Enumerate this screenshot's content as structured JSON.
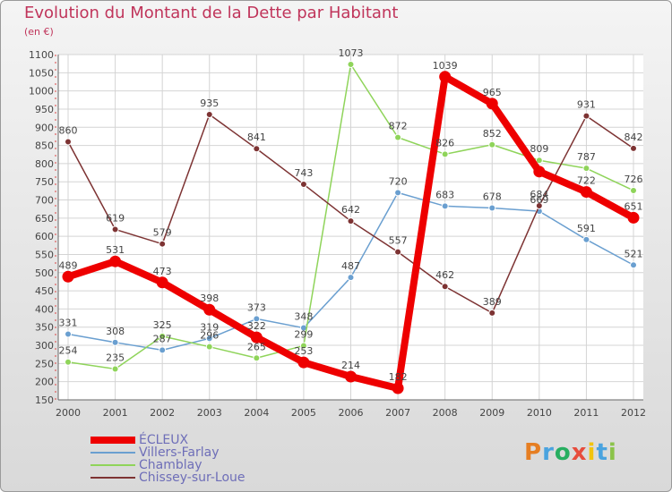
{
  "title": "Evolution du Montant de la Dette par Habitant",
  "unit": "(en €)",
  "logo": {
    "text": "Proxiti",
    "letter_colors": [
      "#e67e22",
      "#4aa3df",
      "#27ae60",
      "#e74c3c",
      "#f1c40f",
      "#4aa3df",
      "#8bc34a"
    ]
  },
  "chart_data": {
    "type": "line",
    "x": [
      "2000",
      "2001",
      "2002",
      "2003",
      "2004",
      "2005",
      "2006",
      "2007",
      "2008",
      "2009",
      "2010",
      "2011",
      "2012"
    ],
    "ylim": [
      150,
      1100
    ],
    "yticks": [
      150,
      200,
      250,
      300,
      350,
      400,
      450,
      500,
      550,
      600,
      650,
      700,
      750,
      800,
      850,
      900,
      950,
      1000,
      1050,
      1100
    ],
    "grid": true,
    "legend_position": "bottom-left",
    "series": [
      {
        "name": "ÉCLEUX",
        "color": "#ee0000",
        "width": 8,
        "values": [
          489,
          531,
          473,
          398,
          322,
          253,
          214,
          182,
          1039,
          965,
          778,
          722,
          651
        ],
        "labels": [
          "489",
          "531",
          "473",
          "398",
          "322",
          "253",
          "214",
          "182",
          "1039",
          "965",
          "",
          "722",
          "651"
        ]
      },
      {
        "name": "Villers-Farlay",
        "color": "#6a9fd0",
        "width": 1.5,
        "values": [
          331,
          308,
          287,
          319,
          373,
          348,
          487,
          720,
          683,
          678,
          669,
          591,
          521
        ],
        "labels": [
          "331",
          "308",
          "287",
          "319",
          "373",
          "348",
          "487",
          "720",
          "683",
          "678",
          "669",
          "591",
          "521"
        ]
      },
      {
        "name": "Chamblay",
        "color": "#8fd45a",
        "width": 1.5,
        "values": [
          254,
          235,
          325,
          296,
          265,
          299,
          1073,
          872,
          826,
          852,
          809,
          787,
          726
        ],
        "labels": [
          "254",
          "235",
          "325",
          "296",
          "265",
          "299",
          "1073",
          "872",
          "826",
          "852",
          "809",
          "787",
          "726"
        ]
      },
      {
        "name": "Chissey-sur-Loue",
        "color": "#7d3333",
        "width": 1.5,
        "values": [
          860,
          619,
          579,
          935,
          841,
          743,
          642,
          557,
          462,
          389,
          684,
          931,
          842
        ],
        "labels": [
          "860",
          "619",
          "579",
          "935",
          "841",
          "743",
          "642",
          "557",
          "462",
          "389",
          "684",
          "931",
          "842"
        ]
      }
    ]
  }
}
